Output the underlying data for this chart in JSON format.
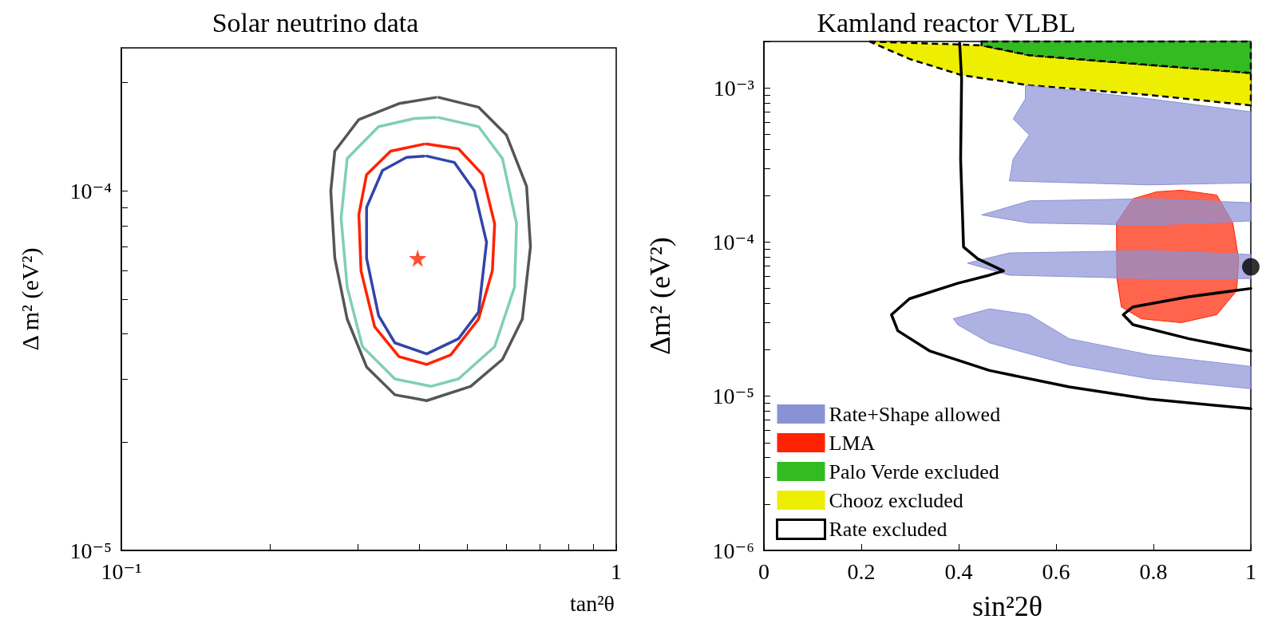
{
  "chart_data": [
    {
      "type": "line",
      "title": "Solar neutrino data",
      "xlabel": "tan²θ",
      "ylabel": "Δ m² (eV²)",
      "log": "xy",
      "grid": false,
      "legend": false,
      "marker": "none",
      "line_style": "solid",
      "xlim": [
        0.1,
        1
      ],
      "ylim": [
        1e-05,
        0.00025
      ],
      "xticks": [
        {
          "value": 0.1,
          "label": "10⁻¹"
        },
        {
          "value": 0.2,
          "label": null
        },
        {
          "value": 0.3,
          "label": null
        },
        {
          "value": 0.4,
          "label": null
        },
        {
          "value": 0.5,
          "label": null
        },
        {
          "value": 0.6,
          "label": null
        },
        {
          "value": 0.7,
          "label": null
        },
        {
          "value": 0.8,
          "label": null
        },
        {
          "value": 0.9,
          "label": null
        },
        {
          "value": 1,
          "label": "1"
        }
      ],
      "yticks": [
        {
          "value": 1e-05,
          "label": "10⁻⁵"
        },
        {
          "value": 2e-05,
          "label": null
        },
        {
          "value": 3e-05,
          "label": null
        },
        {
          "value": 4e-05,
          "label": null
        },
        {
          "value": 5e-05,
          "label": null
        },
        {
          "value": 6e-05,
          "label": null
        },
        {
          "value": 7e-05,
          "label": null
        },
        {
          "value": 8e-05,
          "label": null
        },
        {
          "value": 9e-05,
          "label": null
        },
        {
          "value": 0.0001,
          "label": "10⁻⁴"
        },
        {
          "value": 0.0002,
          "label": null
        }
      ],
      "series": [
        {
          "type": "line",
          "color": "#555555",
          "x": [
            0.438,
            0.527,
            0.6,
            0.659,
            0.671,
            0.646,
            0.589,
            0.508,
            0.414,
            0.357,
            0.313,
            0.286,
            0.27,
            0.265,
            0.27,
            0.302,
            0.364,
            0.432
          ],
          "values": [
            0.000182,
            0.000171,
            0.000143,
            0.000103,
            7e-05,
            4.4e-05,
            3.4e-05,
            2.86e-05,
            2.61e-05,
            2.71e-05,
            3.24e-05,
            4.4e-05,
            6.5e-05,
            0.0001,
            0.000129,
            0.000158,
            0.000175,
            0.000182
          ]
        },
        {
          "type": "line",
          "color": "#80d0b0",
          "x": [
            0.438,
            0.527,
            0.589,
            0.629,
            0.623,
            0.568,
            0.48,
            0.422,
            0.357,
            0.307,
            0.286,
            0.278,
            0.286,
            0.331,
            0.391,
            0.432
          ],
          "values": [
            0.00016,
            0.000151,
            0.000123,
            8.1e-05,
            5.4e-05,
            3.69e-05,
            3e-05,
            2.86e-05,
            3e-05,
            3.69e-05,
            5.4e-05,
            8.4e-05,
            0.000123,
            0.000151,
            0.000159,
            0.00016
          ]
        },
        {
          "type": "line",
          "color": "#ff2200",
          "x": [
            0.414,
            0.48,
            0.537,
            0.568,
            0.562,
            0.527,
            0.463,
            0.414,
            0.364,
            0.325,
            0.305,
            0.302,
            0.313,
            0.35,
            0.409
          ],
          "values": [
            0.000135,
            0.000131,
            0.000111,
            8.1e-05,
            6e-05,
            4.4e-05,
            3.5e-05,
            3.29e-05,
            3.46e-05,
            4.19e-05,
            6e-05,
            8.6e-05,
            0.000111,
            0.000129,
            0.000135
          ]
        },
        {
          "type": "line",
          "color": "#3344aa",
          "x": [
            0.414,
            0.471,
            0.517,
            0.547,
            0.527,
            0.48,
            0.414,
            0.357,
            0.331,
            0.313,
            0.313,
            0.337,
            0.377,
            0.409
          ],
          "values": [
            0.000125,
            0.00012,
            0.0001,
            7.2e-05,
            4.6e-05,
            3.88e-05,
            3.52e-05,
            3.78e-05,
            4.5e-05,
            6.5e-05,
            9e-05,
            0.000114,
            0.000124,
            0.000125
          ]
        },
        {
          "type": "scatter",
          "color": "#ff2200",
          "marker": "star",
          "x": [
            0.397
          ],
          "values": [
            6.5e-05
          ]
        }
      ]
    },
    {
      "type": "line",
      "title": "Kamland reactor VLBL",
      "xlabel": "sin²2θ",
      "ylabel": "Δm² (eV²)",
      "log": "y",
      "grid": false,
      "legend": "bottom left",
      "marker": "none",
      "xlim": [
        0,
        1
      ],
      "ylim": [
        1e-06,
        0.002
      ],
      "xticks": [
        0,
        0.2,
        0.4,
        0.6,
        0.8,
        1
      ],
      "yticks": [
        {
          "value": 1e-06,
          "label": "10⁻⁶"
        },
        {
          "value": 2e-06,
          "label": null
        },
        {
          "value": 3e-06,
          "label": null
        },
        {
          "value": 4e-06,
          "label": null
        },
        {
          "value": 5e-06,
          "label": null
        },
        {
          "value": 6e-06,
          "label": null
        },
        {
          "value": 7e-06,
          "label": null
        },
        {
          "value": 8e-06,
          "label": null
        },
        {
          "value": 9e-06,
          "label": null
        },
        {
          "value": 1e-05,
          "label": "10⁻⁵"
        },
        {
          "value": 2e-05,
          "label": null
        },
        {
          "value": 3e-05,
          "label": null
        },
        {
          "value": 4e-05,
          "label": null
        },
        {
          "value": 5e-05,
          "label": null
        },
        {
          "value": 6e-05,
          "label": null
        },
        {
          "value": 7e-05,
          "label": null
        },
        {
          "value": 8e-05,
          "label": null
        },
        {
          "value": 9e-05,
          "label": null
        },
        {
          "value": 0.0001,
          "label": "10⁻⁴"
        },
        {
          "value": 0.0002,
          "label": null
        },
        {
          "value": 0.0003,
          "label": null
        },
        {
          "value": 0.0004,
          "label": null
        },
        {
          "value": 0.0005,
          "label": null
        },
        {
          "value": 0.0006,
          "label": null
        },
        {
          "value": 0.0007,
          "label": null
        },
        {
          "value": 0.0008,
          "label": null
        },
        {
          "value": 0.0009,
          "label": null
        },
        {
          "value": 0.001,
          "label": "10⁻³"
        },
        {
          "value": 0.002,
          "label": null
        }
      ],
      "series": [
        {
          "type": "area",
          "name": "Rate+Shape allowed",
          "color": "#8a92d6",
          "x": [
            0.537,
            0.791,
            1.0,
            1.0,
            0.791,
            0.504,
            0.512,
            0.545,
            0.512,
            0.537,
            null,
            0.447,
            0.545,
            0.791,
            1.0,
            1.0,
            0.791,
            0.545,
            null,
            0.418,
            0.504,
            0.791,
            1.0,
            1.0,
            0.791,
            0.504,
            null,
            0.389,
            0.463,
            0.545,
            0.627,
            0.791,
            1.0,
            1.0,
            0.791,
            0.627,
            0.463,
            0.398
          ],
          "values": [
            0.00104,
            0.00085,
            0.0007,
            0.000242,
            0.000235,
            0.000249,
            0.000346,
            0.000495,
            0.00063,
            0.00085,
            null,
            0.00015,
            0.000185,
            0.000191,
            0.00018,
            0.000137,
            0.000129,
            0.000133,
            null,
            7.3e-05,
            8.5e-05,
            8.8e-05,
            8.3e-05,
            5.8e-05,
            5.8e-05,
            6.1e-05,
            null,
            3.18e-05,
            3.69e-05,
            3.38e-05,
            2.36e-05,
            1.86e-05,
            1.56e-05,
            1.12e-05,
            1.3e-05,
            1.6e-05,
            2.22e-05,
            2.91e-05
          ]
        },
        {
          "type": "area",
          "name": "LMA",
          "color": "#ff2200",
          "x": [
            0.857,
            0.93,
            0.963,
            0.975,
            0.971,
            0.93,
            0.857,
            0.775,
            0.734,
            0.725,
            0.724,
            0.758,
            0.807
          ],
          "values": [
            0.000217,
            0.000202,
            0.000133,
            7.8e-05,
            4.83e-05,
            3.38e-05,
            3e-05,
            3.18e-05,
            3.8e-05,
            5.8e-05,
            0.000133,
            0.000191,
            0.000212
          ]
        },
        {
          "type": "area",
          "name": "Palo Verde excluded",
          "color": "#33bb22",
          "line_style": "dashed",
          "x": [
            0.447,
            1.0,
            1.0,
            0.791,
            0.545,
            0.447
          ],
          "values": [
            0.002,
            0.002,
            0.00125,
            0.00141,
            0.00163,
            0.00189
          ]
        },
        {
          "type": "area",
          "name": "Chooz excluded",
          "color": "#eeee00",
          "line_style": "dashed",
          "x": [
            0.217,
            0.447,
            0.545,
            0.791,
            1.0,
            1.0,
            0.791,
            0.545,
            0.406,
            0.299
          ],
          "values": [
            0.002,
            0.00189,
            0.00163,
            0.00141,
            0.00125,
            0.00077,
            0.0009,
            0.00104,
            0.00121,
            0.00154
          ]
        },
        {
          "type": "line",
          "name": "Rate excluded",
          "color": "#000000",
          "x": [
            0.402,
            0.406,
            0.404,
            0.41,
            0.439,
            0.492,
            0.463,
            0.398,
            0.299,
            0.262,
            0.275,
            0.34,
            0.463,
            0.627,
            0.791,
            1.0,
            null,
            1.0,
            0.873,
            0.758,
            0.738,
            0.758,
            0.873,
            1.0
          ],
          "values": [
            0.00195,
            0.00114,
            0.000346,
            9.3e-05,
            7.8e-05,
            6.5e-05,
            6.1e-05,
            5.4e-05,
            4.29e-05,
            3.38e-05,
            2.66e-05,
            1.97e-05,
            1.47e-05,
            1.15e-05,
            9.6e-06,
            8.3e-06,
            null,
            5e-05,
            4.42e-05,
            3.8e-05,
            3.38e-05,
            2.91e-05,
            2.36e-05,
            1.97e-05
          ]
        },
        {
          "type": "scatter",
          "color": "#000000",
          "marker": "circle",
          "x": [
            1.0
          ],
          "values": [
            6.9e-05
          ]
        }
      ]
    }
  ]
}
